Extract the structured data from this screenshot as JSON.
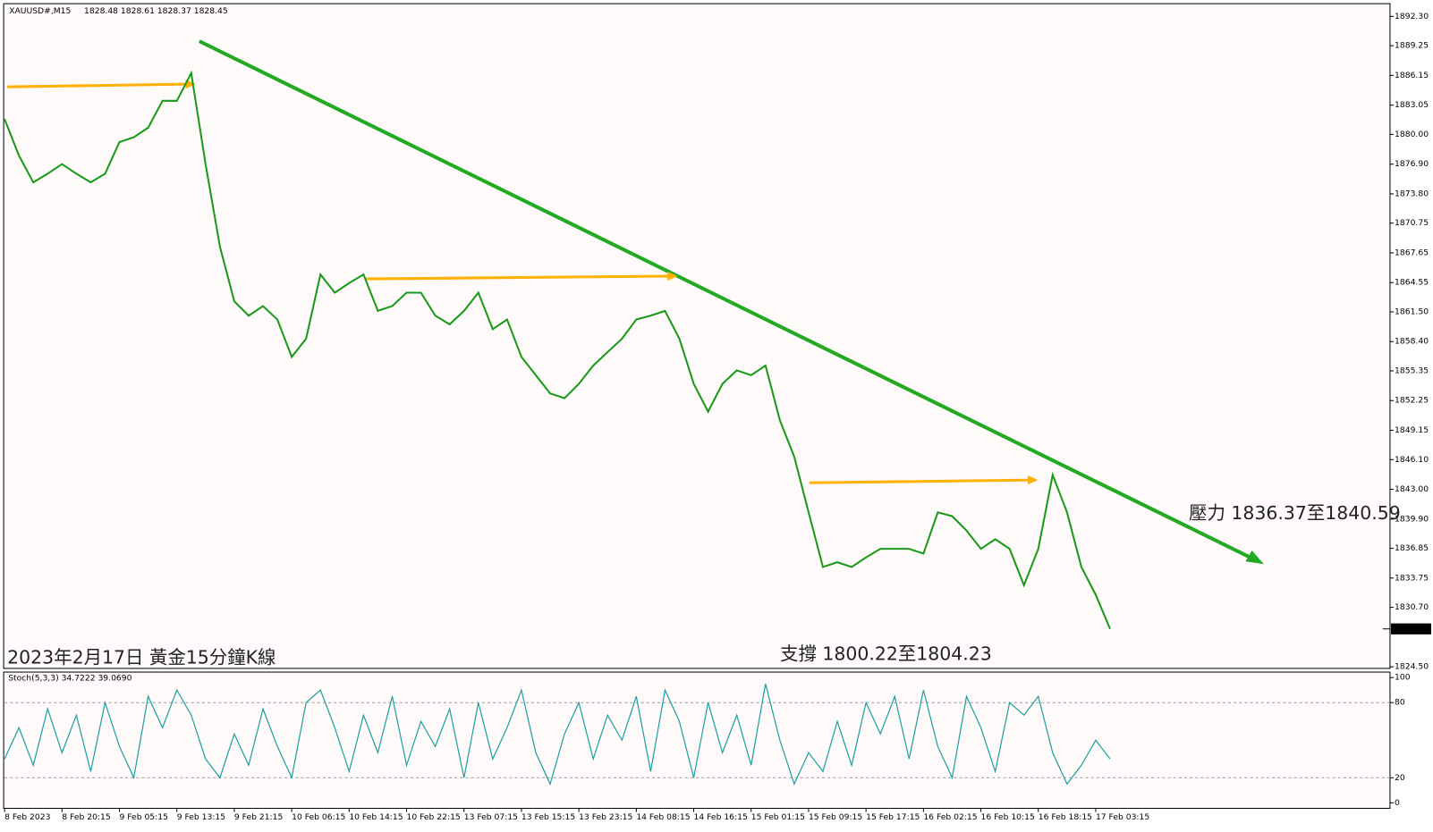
{
  "chart_data": [
    {
      "type": "line",
      "title": "XAUUSD#,M15",
      "ohlc_text": "1828.48 1828.61 1828.37 1828.45",
      "categories": [
        "8 Feb 2023",
        null,
        null,
        null,
        "8 Feb 20:15",
        null,
        null,
        null,
        "9 Feb 05:15",
        null,
        null,
        null,
        "9 Feb 13:15",
        null,
        null,
        null,
        "9 Feb 21:15",
        null,
        null,
        null,
        "10 Feb 06:15",
        null,
        null,
        null,
        "10 Feb 14:15",
        null,
        null,
        null,
        "10 Feb 22:15",
        null,
        null,
        null,
        "13 Feb 07:15",
        null,
        null,
        null,
        "13 Feb 15:15",
        null,
        null,
        null,
        "13 Feb 23:15",
        null,
        null,
        null,
        "14 Feb 08:15",
        null,
        null,
        null,
        "14 Feb 16:15",
        null,
        null,
        null,
        "15 Feb 01:15",
        null,
        null,
        null,
        "15 Feb 09:15",
        null,
        null,
        null,
        "15 Feb 17:15",
        null,
        null,
        null,
        "16 Feb 02:15",
        null,
        null,
        null,
        "16 Feb 10:15",
        null,
        null,
        null,
        "16 Feb 18:15",
        null,
        null,
        null,
        "17 Feb 03:15",
        null
      ],
      "series": [
        {
          "name": "XAUUSD#",
          "color": "#1a9a1a",
          "values": [
            1881.6,
            1877.8,
            1875.0,
            1875.9,
            1876.9,
            1875.9,
            1875.0,
            1875.9,
            1879.2,
            1879.7,
            1880.7,
            1883.5,
            1883.5,
            1886.4,
            1876.9,
            1868.3,
            1862.6,
            1861.1,
            1862.1,
            1860.7,
            1856.8,
            1858.7,
            1865.4,
            1863.5,
            1864.5,
            1865.4,
            1861.6,
            1862.1,
            1863.5,
            1863.5,
            1861.1,
            1860.2,
            1861.6,
            1863.5,
            1859.7,
            1860.7,
            1856.8,
            1854.9,
            1853.0,
            1852.5,
            1854.0,
            1855.9,
            1857.3,
            1858.7,
            1860.7,
            1861.1,
            1861.6,
            1858.7,
            1854.0,
            1851.1,
            1854.0,
            1855.4,
            1854.9,
            1855.9,
            1850.2,
            1846.4,
            1840.6,
            1834.9,
            1835.4,
            1834.9,
            1835.9,
            1836.8,
            1836.8,
            1836.8,
            1836.3,
            1840.6,
            1840.2,
            1838.7,
            1836.8,
            1837.8,
            1836.8,
            1833.0,
            1836.8,
            1844.5,
            1840.6,
            1834.9,
            1832.0,
            1828.45
          ]
        }
      ],
      "last_price": 1828.45,
      "ylim": [
        1824.33,
        1893.63
      ],
      "yticks": [
        {
          "value": 1824.5,
          "label": "1824.50"
        },
        {
          "value": 1830.7,
          "label": "1830.70"
        },
        {
          "value": 1833.75,
          "label": "1833.75"
        },
        {
          "value": 1836.85,
          "label": "1836.85"
        },
        {
          "value": 1839.9,
          "label": "1839.90"
        },
        {
          "value": 1843.0,
          "label": "1843.00"
        },
        {
          "value": 1846.1,
          "label": "1846.10"
        },
        {
          "value": 1849.15,
          "label": "1849.15"
        },
        {
          "value": 1852.25,
          "label": "1852.25"
        },
        {
          "value": 1855.35,
          "label": "1855.35"
        },
        {
          "value": 1858.4,
          "label": "1858.40"
        },
        {
          "value": 1861.5,
          "label": "1861.50"
        },
        {
          "value": 1864.55,
          "label": "1864.55"
        },
        {
          "value": 1867.65,
          "label": "1867.65"
        },
        {
          "value": 1870.75,
          "label": "1870.75"
        },
        {
          "value": 1873.8,
          "label": "1873.80"
        },
        {
          "value": 1876.9,
          "label": "1876.90"
        },
        {
          "value": 1880.0,
          "label": "1880.00"
        },
        {
          "value": 1883.05,
          "label": "1883.05"
        },
        {
          "value": 1886.15,
          "label": "1886.15"
        },
        {
          "value": 1889.25,
          "label": "1889.25"
        },
        {
          "value": 1892.3,
          "label": "1892.30"
        }
      ],
      "annotations": [
        "壓力 1836.37至1840.59",
        "支撐 1800.22至1804.23",
        "2023年2月17日 黃金15分鐘K線"
      ]
    },
    {
      "type": "line",
      "title": "Stoch(5,3,3) 34.7222 39.0690",
      "series": [
        {
          "name": "Stoch",
          "color": "#20a0a0",
          "values": [
            35,
            60,
            30,
            75,
            40,
            70,
            25,
            80,
            45,
            20,
            85,
            60,
            90,
            70,
            35,
            20,
            55,
            30,
            75,
            45,
            20,
            80,
            90,
            60,
            25,
            70,
            40,
            85,
            30,
            65,
            45,
            75,
            20,
            80,
            35,
            60,
            90,
            40,
            15,
            55,
            80,
            35,
            70,
            50,
            85,
            25,
            90,
            65,
            20,
            80,
            40,
            70,
            30,
            95,
            50,
            15,
            40,
            25,
            65,
            30,
            80,
            55,
            85,
            35,
            90,
            45,
            20,
            85,
            60,
            25,
            80,
            70,
            85,
            40,
            15,
            30,
            50,
            35
          ]
        }
      ],
      "ylim": [
        -4.4,
        104.4
      ],
      "yticks": [
        0,
        20,
        80,
        100
      ],
      "levels": [
        20,
        80
      ]
    }
  ]
}
